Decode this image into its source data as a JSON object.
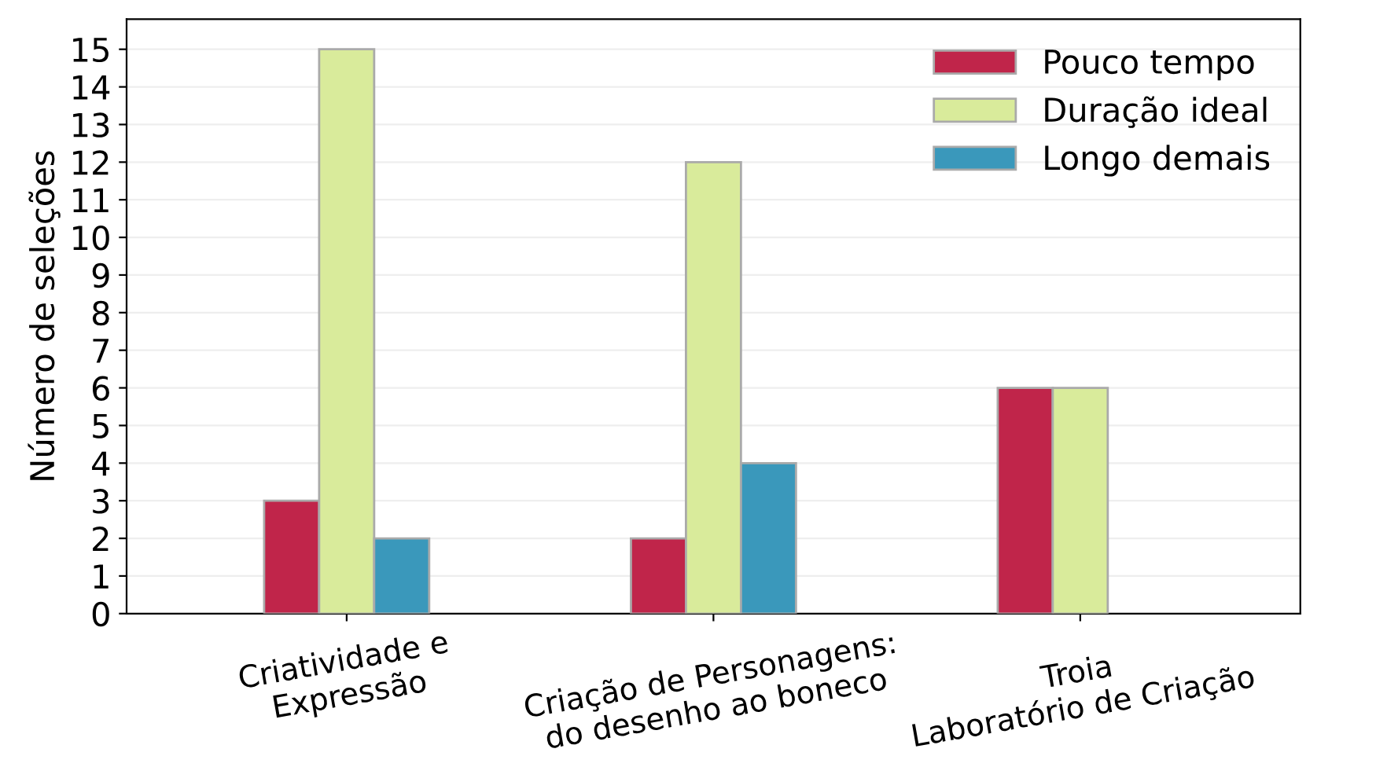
{
  "chart_data": {
    "type": "bar",
    "categories": [
      "Criatividade e\nExpressão",
      "Criação de Personagens:\ndo desenho ao boneco",
      "Troia\nLaboratório de Criação"
    ],
    "series": [
      {
        "name": "Pouco tempo",
        "color": "#c0254a",
        "values": [
          3,
          2,
          6
        ]
      },
      {
        "name": "Duração ideal",
        "color": "#d9eb9b",
        "values": [
          15,
          12,
          6
        ]
      },
      {
        "name": "Longo demais",
        "color": "#3a98bb",
        "values": [
          2,
          4,
          null
        ]
      }
    ],
    "ylabel": "Número de seleções",
    "ylim": [
      0,
      15.8
    ],
    "yticks": [
      0,
      1,
      2,
      3,
      4,
      5,
      6,
      7,
      8,
      9,
      10,
      11,
      12,
      13,
      14,
      15
    ],
    "grid": "y",
    "legend": "top right"
  }
}
